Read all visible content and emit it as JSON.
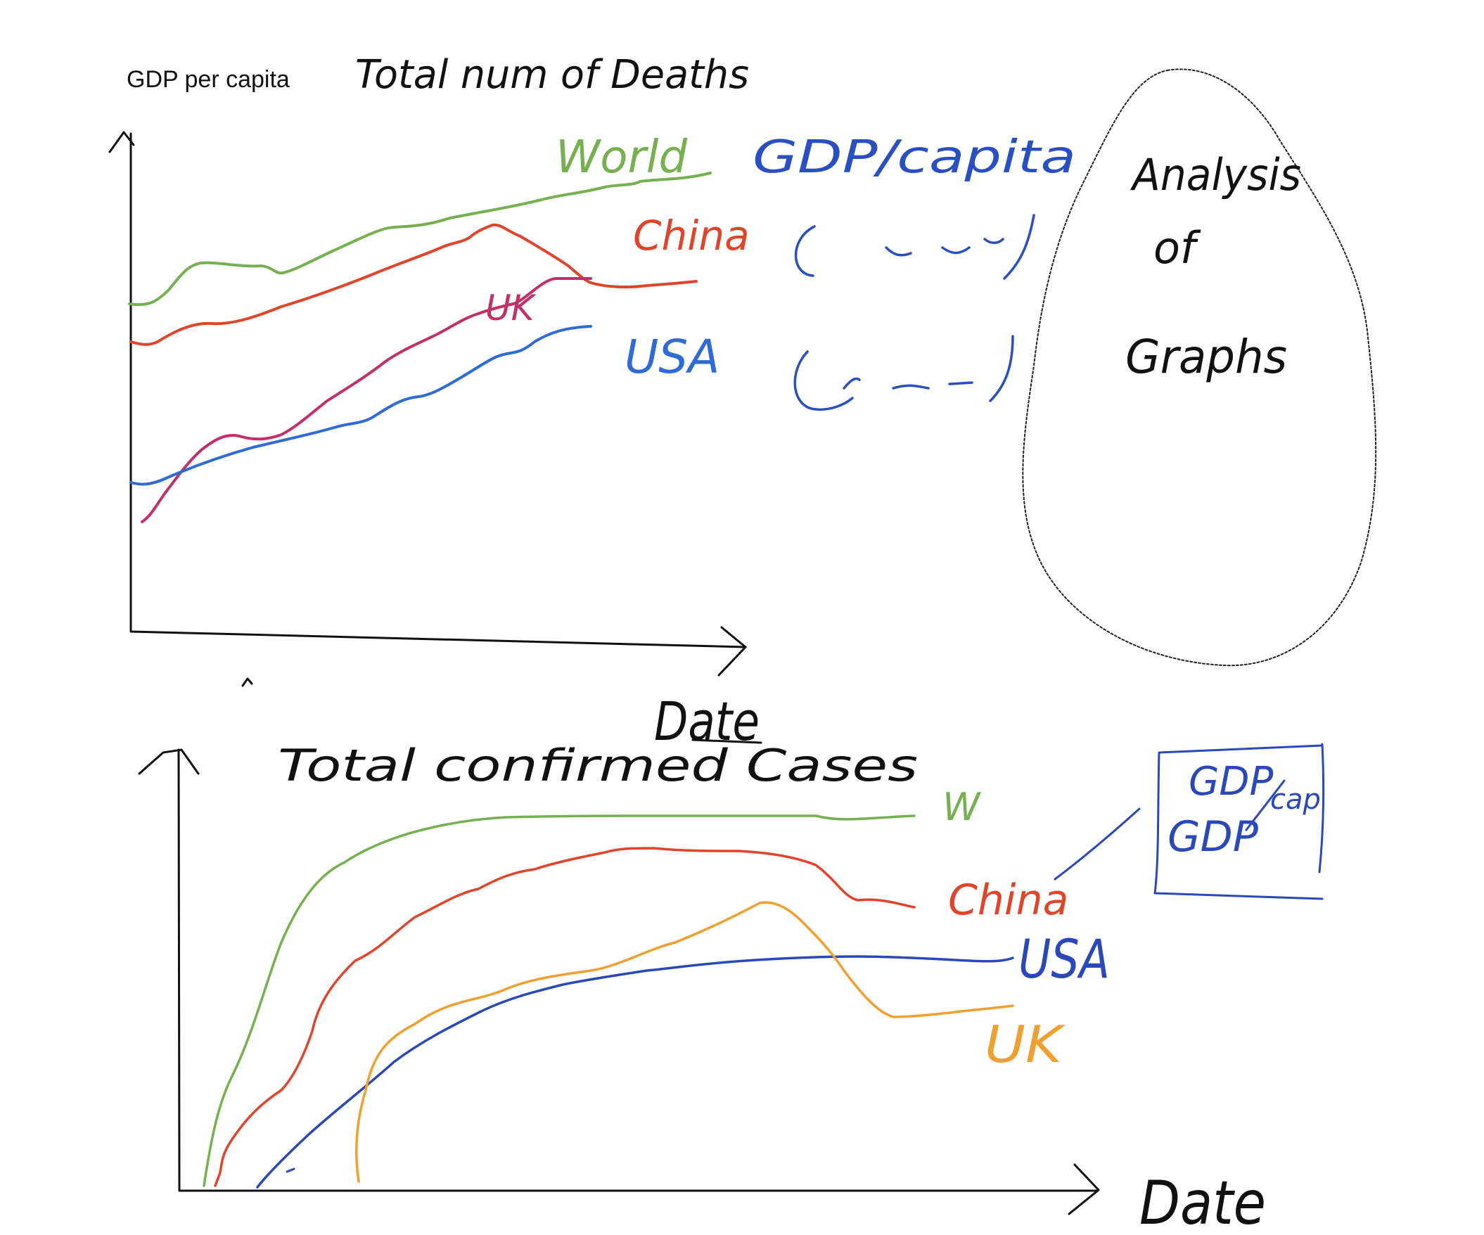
{
  "colors": {
    "ink": "#111111",
    "world": "#76b050",
    "china": "#e0452c",
    "uk_top": "#c2306a",
    "usa_top": "#2f6bd6",
    "usa_bottom": "#2a48b8",
    "uk_bottom": "#f0a030",
    "annotation_blue": "#2a4fc0"
  },
  "top_chart": {
    "y_label": "GDP per capita",
    "title": "Total num of Deaths",
    "x_label": "Date",
    "series": [
      {
        "name": "World",
        "note": "GDP/capita"
      },
      {
        "name": "China"
      },
      {
        "name": "UK"
      },
      {
        "name": "USA"
      }
    ]
  },
  "bottom_chart": {
    "title": "Total confirmed Cases",
    "x_label": "Date",
    "series": [
      {
        "name": "W"
      },
      {
        "name": "China"
      },
      {
        "name": "USA"
      },
      {
        "name": "UK"
      }
    ],
    "box_lines": [
      "GDP",
      "GDP",
      "cap"
    ]
  },
  "bubble": {
    "lines": [
      "Analysis",
      "of",
      "Graphs"
    ]
  }
}
